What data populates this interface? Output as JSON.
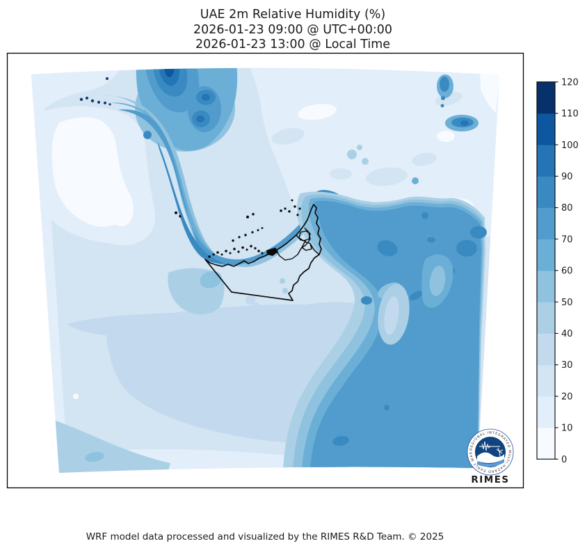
{
  "title": {
    "line1": "UAE 2m Relative Humidity (%)",
    "line2": "2026-01-23 09:00 @ UTC+00:00",
    "line3": "2026-01-23 13:00 @ Local Time"
  },
  "footer": "WRF model data processed and visualized by the RIMES R&D Team. © 2025",
  "colorbar": {
    "unit": "%",
    "min": 0,
    "max": 120,
    "ticks": [
      0,
      10,
      20,
      30,
      40,
      50,
      60,
      70,
      80,
      90,
      100,
      110,
      120
    ]
  },
  "palette": {
    "colors": [
      "#f7fbff",
      "#e2eef9",
      "#d3e4f3",
      "#c2d9ee",
      "#abd0e6",
      "#8fc2de",
      "#6baed6",
      "#519ccc",
      "#3a8ac2",
      "#2474b6",
      "#0d57a1",
      "#08306b"
    ],
    "level_ranges": [
      "0-10",
      "10-20",
      "20-30",
      "30-40",
      "40-50",
      "50-60",
      "60-70",
      "70-80",
      "80-90",
      "90-100",
      "100-110",
      "110-120"
    ]
  },
  "logo": {
    "name": "RIMES",
    "ring_text": "REGIONAL INTEGRATED MULTI-HAZARD EARLY WARNING SYSTEM"
  },
  "chart_data": {
    "type": "heatmap",
    "title": "UAE 2m Relative Humidity (%)",
    "valid_time_utc": "2026-01-23 09:00 @ UTC+00:00",
    "valid_time_local": "2026-01-23 13:00 @ Local Time",
    "variable": "2m relative humidity",
    "units": "%",
    "legend_position": "right",
    "colorbar_levels": [
      0,
      10,
      20,
      30,
      40,
      50,
      60,
      70,
      80,
      90,
      100,
      110,
      120
    ],
    "colorbar_colors": [
      "#f7fbff",
      "#e2eef9",
      "#d3e4f3",
      "#c2d9ee",
      "#abd0e6",
      "#8fc2de",
      "#6baed6",
      "#519ccc",
      "#3a8ac2",
      "#2474b6",
      "#0d57a1",
      "#08306b"
    ],
    "map_overlay": "UAE administrative boundary outline with coastal islands",
    "approx_region_values": [
      {
        "region": "Persian Gulf waters (northwest diagonal band)",
        "rh_percent": "70-90"
      },
      {
        "region": "UAE coastal waters along Abu Dhabi / Dubai",
        "rh_percent": "70-80"
      },
      {
        "region": "UAE inland desert",
        "rh_percent": "20-30"
      },
      {
        "region": "Saudi interior west of Qatar (pale patch)",
        "rh_percent": "0-10"
      },
      {
        "region": "Zagros highlands at north edge (dark spot)",
        "rh_percent": "90-120"
      },
      {
        "region": "Iran interior northeast quadrant",
        "rh_percent": "0-20"
      },
      {
        "region": "Gulf of Oman and Hajar mountains (southeast mass)",
        "rh_percent": "70-90"
      },
      {
        "region": "Oman interior / Rub al Khali (south-center)",
        "rh_percent": "30-40"
      }
    ]
  }
}
